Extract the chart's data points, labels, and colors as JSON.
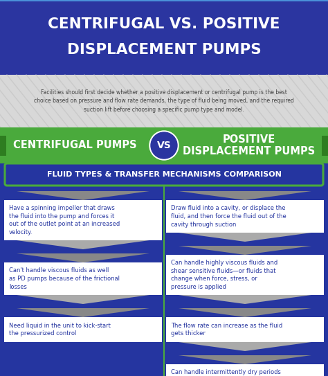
{
  "title_line1": "CENTRIFUGAL VS. POSITIVE",
  "title_line2": "DISPLACEMENT PUMPS",
  "title_bg": "#2b35a0",
  "title_border": "#4a90d9",
  "title_color": "#ffffff",
  "subtitle_text": "Facilities should first decide whether a positive displacement or centrifugal pump is the best\nchoice based on pressure and flow rate demands, the type of fluid being moved, and the required\nsuction lift before choosing a specific pump type and model.",
  "subtitle_bg": "#d8d8d8",
  "subtitle_stripe": "#c4c4c4",
  "subtitle_color": "#444444",
  "vs_bar_color": "#4aaa3c",
  "vs_bar_dark": "#2e7d20",
  "vs_bar_text_left": "CENTRIFUGAL PUMPS",
  "vs_bar_text_right": "POSITIVE\nDISPLACEMENT PUMPS",
  "vs_circle_bg": "#2b35a0",
  "vs_circle_border": "#cccccc",
  "vs_circle_text": "VS",
  "comp_bg": "#2535a0",
  "comp_bar_border": "#4aaa3c",
  "comp_bar_text": "FLUID TYPES & TRANSFER MECHANISMS COMPARISON",
  "main_bg": "#2535a0",
  "divider_color": "#4aaa3c",
  "left_points": [
    "Have a spinning impeller that draws\nthe fluid into the pump and forces it\nout of the outlet point at an increased\nvelocity.",
    "Can't handle viscous fluids as well\nas PD pumps because of the frictional\nlosses",
    "Need liquid in the unit to kick-start\nthe pressurized control"
  ],
  "right_points": [
    "Draw fluid into a cavity, or displace the\nfluid, and then force the fluid out of the\ncavity through suction",
    "Can handle highly viscous fluids and\nshear sensitive fluids—or fluids that\nchange when force, stress, or\npressure is applied",
    "The flow rate can increase as the fluid\ngets thicker",
    "Can handle intermittently dry periods\nand can start without being primed by\nliquid in the system"
  ],
  "card_bg": "#ffffff",
  "card_text_color": "#2535a0",
  "arrow_color": "#aaaaaa",
  "arrow_top_color": "#888888"
}
